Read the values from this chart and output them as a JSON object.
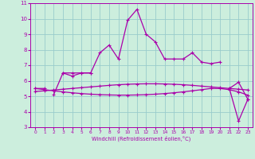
{
  "xlabel": "Windchill (Refroidissement éolien,°C)",
  "bg_color": "#cceedd",
  "grid_color": "#99cccc",
  "line_color": "#aa00aa",
  "x_values": [
    0,
    1,
    2,
    3,
    4,
    5,
    6,
    7,
    8,
    9,
    10,
    11,
    12,
    13,
    14,
    15,
    16,
    17,
    18,
    19,
    20,
    21,
    22,
    23
  ],
  "line1_y": [
    5.5,
    5.5,
    null,
    6.5,
    6.5,
    6.5,
    6.5,
    7.8,
    8.3,
    7.4,
    9.9,
    10.6,
    9.0,
    8.5,
    7.4,
    7.4,
    7.4,
    7.8,
    7.2,
    7.1,
    7.2,
    null,
    null,
    null
  ],
  "line2_y": [
    null,
    null,
    5.1,
    6.5,
    6.3,
    6.5,
    6.5,
    null,
    null,
    null,
    null,
    null,
    null,
    null,
    null,
    null,
    null,
    null,
    null,
    null,
    null,
    5.5,
    5.9,
    4.8
  ],
  "line3_y": [
    5.5,
    5.42,
    5.35,
    5.28,
    5.22,
    5.17,
    5.13,
    5.1,
    5.08,
    5.07,
    5.07,
    5.08,
    5.1,
    5.13,
    5.17,
    5.22,
    5.28,
    5.35,
    5.42,
    5.5,
    5.5,
    5.42,
    5.28,
    5.07
  ],
  "line4_y": [
    5.3,
    5.35,
    5.4,
    5.45,
    5.5,
    5.55,
    5.6,
    5.65,
    5.7,
    5.74,
    5.77,
    5.79,
    5.8,
    5.8,
    5.79,
    5.77,
    5.74,
    5.7,
    5.65,
    5.6,
    5.55,
    5.5,
    5.45,
    5.4
  ],
  "line5_y": [
    null,
    null,
    null,
    null,
    null,
    null,
    null,
    null,
    null,
    null,
    null,
    null,
    null,
    null,
    null,
    null,
    null,
    null,
    null,
    null,
    null,
    5.5,
    3.4,
    4.8
  ],
  "ylim": [
    3,
    11
  ],
  "xlim": [
    -0.5,
    23.5
  ],
  "yticks": [
    3,
    4,
    5,
    6,
    7,
    8,
    9,
    10,
    11
  ],
  "xticks": [
    0,
    1,
    2,
    3,
    4,
    5,
    6,
    7,
    8,
    9,
    10,
    11,
    12,
    13,
    14,
    15,
    16,
    17,
    18,
    19,
    20,
    21,
    22,
    23
  ]
}
